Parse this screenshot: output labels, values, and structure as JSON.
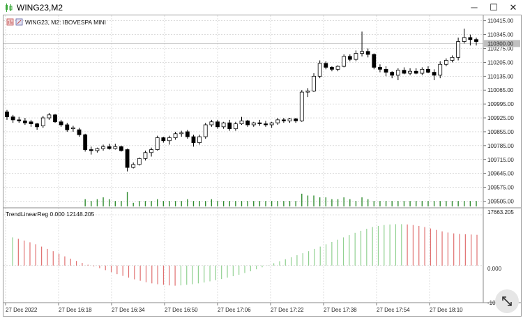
{
  "window": {
    "title": "WING23,M2",
    "min_label": "─",
    "max_label": "☐",
    "close_label": "✕",
    "app_icon": "candlestick-app-icon"
  },
  "chart_header": {
    "symbol_line": "WING23, M2:  IBOVESPA MINI",
    "icons": [
      "bar-chart-icon",
      "one-click-trading-icon"
    ]
  },
  "indicator": {
    "label": "TrendLinearReg 0.000 12148.205",
    "axis_top": "17663.205",
    "axis_zero": "0.000",
    "axis_bottom_partial": "-10"
  },
  "colors": {
    "bull_body": "#ffffff",
    "bear_body": "#000000",
    "volume": "#2e8b2e",
    "ind_up": "#90d090",
    "ind_down": "#e07070",
    "grid": "#c8c8c8"
  },
  "chart_data": [
    {
      "type": "candlestick",
      "title": "WING23, M2:  IBOVESPA MINI",
      "y_ticks": [
        "110415.00",
        "110345.00",
        "110275.00",
        "110205.00",
        "110135.00",
        "110065.00",
        "109995.00",
        "109925.00",
        "109855.00",
        "109785.00",
        "109715.00",
        "109645.00",
        "109575.00",
        "109505.00"
      ],
      "ylim": [
        109475,
        110435
      ],
      "x_ticks": [
        "27 Dec 2022",
        "27 Dec 16:18",
        "27 Dec 16:34",
        "27 Dec 16:50",
        "27 Dec 17:06",
        "27 Dec 17:22",
        "27 Dec 17:38",
        "27 Dec 17:54",
        "27 Dec 18:10"
      ],
      "bid_level": "110300.00",
      "candles": [
        [
          109955,
          109965,
          109915,
          109930
        ],
        [
          109930,
          109940,
          109900,
          109915
        ],
        [
          109915,
          109930,
          109900,
          109910
        ],
        [
          109910,
          109925,
          109890,
          109900
        ],
        [
          109905,
          109915,
          109880,
          109895
        ],
        [
          109895,
          109900,
          109865,
          109880
        ],
        [
          109885,
          109935,
          109875,
          109925
        ],
        [
          109925,
          109950,
          109915,
          109940
        ],
        [
          109940,
          109945,
          109900,
          109905
        ],
        [
          109905,
          109915,
          109880,
          109890
        ],
        [
          109890,
          109900,
          109855,
          109865
        ],
        [
          109870,
          109885,
          109855,
          109875
        ],
        [
          109865,
          109875,
          109830,
          109840
        ],
        [
          109840,
          109845,
          109755,
          109765
        ],
        [
          109765,
          109780,
          109740,
          109760
        ],
        [
          109760,
          109775,
          109750,
          109770
        ],
        [
          109770,
          109790,
          109760,
          109780
        ],
        [
          109780,
          109795,
          109765,
          109770
        ],
        [
          109770,
          109795,
          109765,
          109780
        ],
        [
          109780,
          109785,
          109755,
          109760
        ],
        [
          109765,
          109770,
          109655,
          109675
        ],
        [
          109675,
          109700,
          109670,
          109690
        ],
        [
          109690,
          109725,
          109685,
          109720
        ],
        [
          109720,
          109760,
          109710,
          109750
        ],
        [
          109750,
          109775,
          109730,
          109765
        ],
        [
          109765,
          109835,
          109760,
          109825
        ],
        [
          109825,
          109830,
          109800,
          109810
        ],
        [
          109810,
          109835,
          109790,
          109825
        ],
        [
          109825,
          109855,
          109815,
          109845
        ],
        [
          109845,
          109860,
          109830,
          109850
        ],
        [
          109855,
          109865,
          109820,
          109830
        ],
        [
          109830,
          109840,
          109780,
          109800
        ],
        [
          109800,
          109840,
          109790,
          109830
        ],
        [
          109830,
          109900,
          109820,
          109890
        ],
        [
          109890,
          109915,
          109880,
          109905
        ],
        [
          109905,
          109915,
          109870,
          109880
        ],
        [
          109880,
          109905,
          109870,
          109900
        ],
        [
          109900,
          109915,
          109860,
          109870
        ],
        [
          109870,
          109905,
          109860,
          109895
        ],
        [
          109895,
          109930,
          109890,
          109910
        ],
        [
          109910,
          109915,
          109880,
          109890
        ],
        [
          109890,
          109905,
          109880,
          109900
        ],
        [
          109900,
          109915,
          109885,
          109895
        ],
        [
          109895,
          109910,
          109880,
          109890
        ],
        [
          109890,
          109905,
          109875,
          109900
        ],
        [
          109900,
          109925,
          109890,
          109915
        ],
        [
          109915,
          109925,
          109900,
          109910
        ],
        [
          109910,
          109925,
          109900,
          109920
        ],
        [
          109920,
          109925,
          109900,
          109910
        ],
        [
          109910,
          110065,
          109905,
          110055
        ],
        [
          110055,
          110075,
          110030,
          110060
        ],
        [
          110060,
          110150,
          110055,
          110135
        ],
        [
          110135,
          110215,
          110125,
          110200
        ],
        [
          110200,
          110210,
          110170,
          110180
        ],
        [
          110180,
          110185,
          110160,
          110170
        ],
        [
          110170,
          110190,
          110160,
          110185
        ],
        [
          110185,
          110245,
          110180,
          110235
        ],
        [
          110235,
          110245,
          110210,
          110220
        ],
        [
          110220,
          110265,
          110210,
          110250
        ],
        [
          110250,
          110360,
          110235,
          110260
        ],
        [
          110260,
          110275,
          110230,
          110245
        ],
        [
          110245,
          110250,
          110170,
          110180
        ],
        [
          110180,
          110195,
          110155,
          110170
        ],
        [
          110170,
          110185,
          110135,
          110155
        ],
        [
          110155,
          110160,
          110125,
          110140
        ],
        [
          110140,
          110175,
          110115,
          110165
        ],
        [
          110165,
          110180,
          110145,
          110150
        ],
        [
          110150,
          110175,
          110140,
          110160
        ],
        [
          110160,
          110175,
          110145,
          110150
        ],
        [
          110150,
          110180,
          110140,
          110170
        ],
        [
          110170,
          110185,
          110150,
          110155
        ],
        [
          110155,
          110170,
          110115,
          110140
        ],
        [
          110140,
          110210,
          110125,
          110195
        ],
        [
          110195,
          110225,
          110185,
          110215
        ],
        [
          110215,
          110240,
          110205,
          110230
        ],
        [
          110230,
          110330,
          110215,
          110310
        ],
        [
          110310,
          110375,
          110300,
          110330
        ],
        [
          110330,
          110345,
          110290,
          110320
        ],
        [
          110320,
          110330,
          110290,
          110310
        ]
      ],
      "volume": [
        0,
        0,
        0,
        0,
        0,
        0,
        0,
        0,
        0,
        0,
        0,
        0,
        0,
        4,
        3,
        4,
        5,
        4,
        3,
        3,
        8,
        2,
        3,
        3,
        3,
        4,
        3,
        3,
        3,
        3,
        4,
        3,
        3,
        3,
        4,
        3,
        3,
        3,
        3,
        3,
        3,
        3,
        3,
        3,
        3,
        3,
        3,
        3,
        3,
        7,
        6,
        6,
        5,
        5,
        4,
        4,
        5,
        4,
        3,
        5,
        4,
        3,
        3,
        3,
        3,
        3,
        3,
        3,
        3,
        3,
        3,
        3,
        3,
        3,
        3,
        3,
        3,
        3,
        3
      ]
    },
    {
      "type": "bar",
      "title": "TrendLinearReg 0.000 12148.205",
      "ylim": [
        -10000,
        17663.205
      ],
      "values": [
        9800,
        9300,
        8700,
        8100,
        7400,
        6600,
        5800,
        5000,
        4100,
        3200,
        2400,
        1600,
        900,
        300,
        -300,
        -900,
        -1600,
        -2300,
        -3000,
        -3600,
        -4200,
        -4800,
        -5300,
        -5800,
        -6200,
        -6500,
        -6700,
        -6900,
        -7000,
        -6900,
        -6700,
        -6500,
        -6200,
        -5900,
        -5500,
        -5100,
        -4700,
        -4200,
        -3700,
        -3200,
        -2600,
        -2000,
        -1300,
        -600,
        100,
        800,
        1500,
        2200,
        2900,
        3600,
        4300,
        5000,
        5800,
        6600,
        7400,
        8200,
        9000,
        9800,
        10600,
        11400,
        12100,
        12800,
        13400,
        13800,
        14100,
        14300,
        14400,
        14400,
        14300,
        14100,
        13800,
        13400,
        12900,
        12400,
        11900,
        11500,
        11200,
        11000,
        10900,
        10800,
        10700
      ]
    }
  ]
}
